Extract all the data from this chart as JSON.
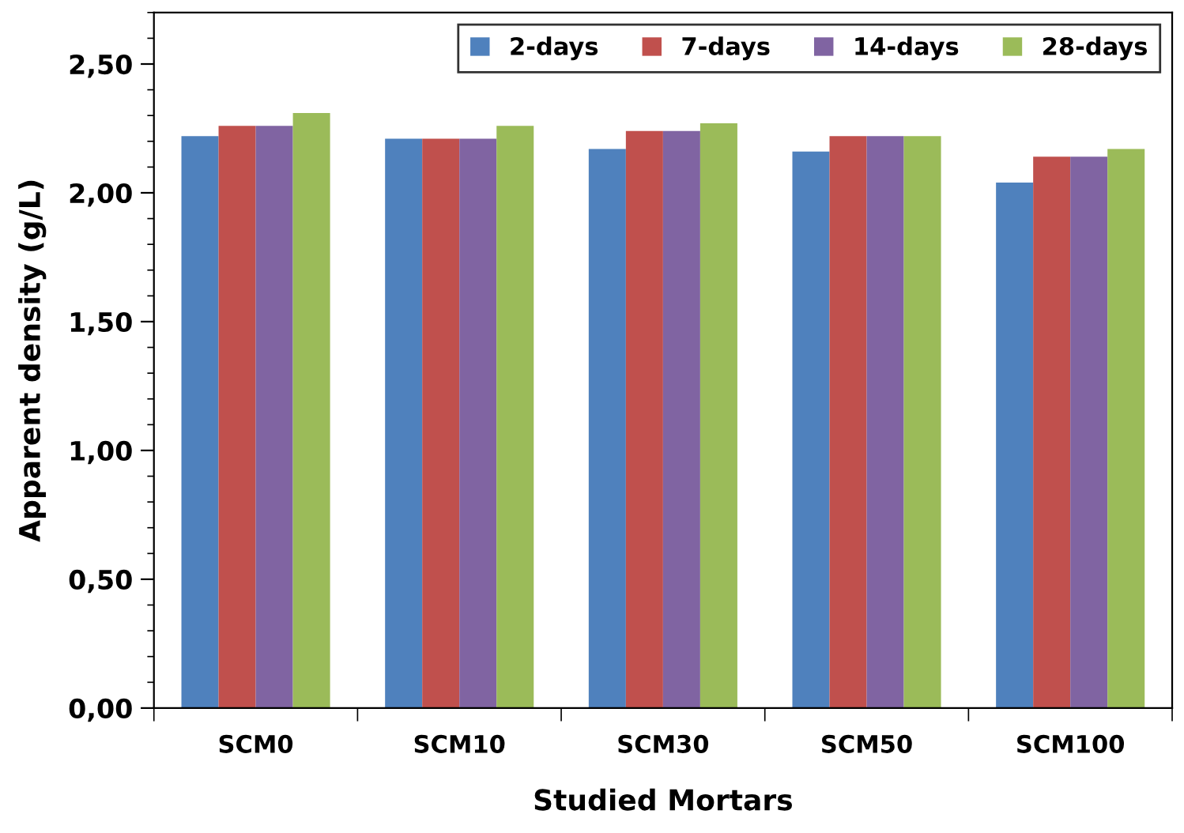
{
  "chart_data": {
    "type": "bar",
    "xlabel": "Studied Mortars",
    "ylabel": "Apparent density (g/L)",
    "categories": [
      "SCM0",
      "SCM10",
      "SCM30",
      "SCM50",
      "SCM100"
    ],
    "series": [
      {
        "name": "2-days",
        "color": "#4f81bd",
        "values": [
          2.22,
          2.21,
          2.17,
          2.16,
          2.04
        ]
      },
      {
        "name": "7-days",
        "color": "#c0504d",
        "values": [
          2.26,
          2.21,
          2.24,
          2.22,
          2.14
        ]
      },
      {
        "name": "14-days",
        "color": "#8064a2",
        "values": [
          2.26,
          2.21,
          2.24,
          2.22,
          2.14
        ]
      },
      {
        "name": "28-days",
        "color": "#9bbb59",
        "values": [
          2.31,
          2.26,
          2.27,
          2.22,
          2.17
        ]
      }
    ],
    "ylim": [
      0,
      2.7
    ],
    "yticks": [
      {
        "value": 0,
        "label": "0,00"
      },
      {
        "value": 0.5,
        "label": "0,50"
      },
      {
        "value": 1.0,
        "label": "1,00"
      },
      {
        "value": 1.5,
        "label": "1,50"
      },
      {
        "value": 2.0,
        "label": "2,00"
      },
      {
        "value": 2.5,
        "label": "2,50"
      }
    ],
    "grid": false,
    "legend": "top right"
  }
}
